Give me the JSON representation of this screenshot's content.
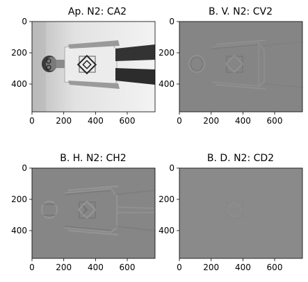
{
  "figure": {
    "layout": "2x2 grid of image subplots",
    "colormap": "gray"
  },
  "chart_data": [
    {
      "type": "heatmap",
      "title": "Ap. N2: CA2",
      "xlim": [
        0,
        775
      ],
      "ylim": [
        580,
        0
      ],
      "xticks": [
        "0",
        "200",
        "400",
        "600"
      ],
      "yticks": [
        "0",
        "200",
        "400"
      ],
      "xtick_values": [
        0,
        200,
        400,
        600
      ],
      "ytick_values": [
        0,
        200,
        400
      ],
      "content": "Grayscale approximation coefficients: a person with glasses and a t-shirt with a diamond logo, rotated sideways",
      "base_color": "#d2d2d2"
    },
    {
      "type": "heatmap",
      "title": "B. V. N2: CV2",
      "xlim": [
        0,
        775
      ],
      "ylim": [
        580,
        0
      ],
      "xticks": [
        "0",
        "200",
        "400",
        "600"
      ],
      "yticks": [
        "0",
        "200",
        "400"
      ],
      "xtick_values": [
        0,
        200,
        400,
        600
      ],
      "ytick_values": [
        0,
        200,
        400
      ],
      "content": "Vertical detail coefficients: faint edge outline on mid-gray background",
      "base_color": "#858585"
    },
    {
      "type": "heatmap",
      "title": "B. H. N2: CH2",
      "xlim": [
        0,
        775
      ],
      "ylim": [
        580,
        0
      ],
      "xticks": [
        "0",
        "200",
        "400",
        "600"
      ],
      "yticks": [
        "0",
        "200",
        "400"
      ],
      "xtick_values": [
        0,
        200,
        400,
        600
      ],
      "ytick_values": [
        0,
        200,
        400
      ],
      "content": "Horizontal detail coefficients: edge outline on mid-gray background",
      "base_color": "#868686"
    },
    {
      "type": "heatmap",
      "title": "B. D. N2: CD2",
      "xlim": [
        0,
        775
      ],
      "ylim": [
        580,
        0
      ],
      "xticks": [
        "0",
        "200",
        "400",
        "600"
      ],
      "yticks": [
        "0",
        "200",
        "400"
      ],
      "xtick_values": [
        0,
        200,
        400,
        600
      ],
      "ytick_values": [
        0,
        200,
        400
      ],
      "content": "Diagonal detail coefficients: nearly uniform mid-gray",
      "base_color": "#8a8a8a"
    }
  ]
}
